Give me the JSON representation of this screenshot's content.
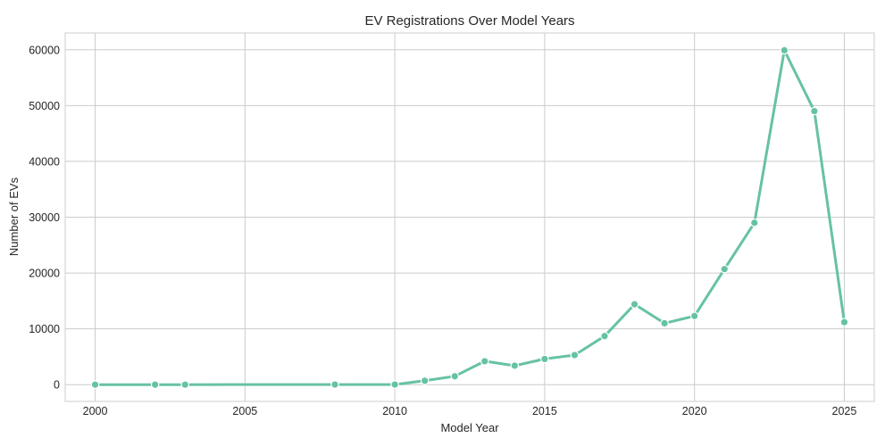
{
  "chart_data": {
    "type": "line",
    "title": "EV Registrations Over Model Years",
    "xlabel": "Model Year",
    "ylabel": "Number of EVs",
    "xlim": [
      1999,
      2026
    ],
    "ylim": [
      -3000,
      63000
    ],
    "xticks": [
      2000,
      2005,
      2010,
      2015,
      2020,
      2025
    ],
    "yticks": [
      0,
      10000,
      20000,
      30000,
      40000,
      50000,
      60000
    ],
    "grid": true,
    "series": [
      {
        "color": "#66c2a5",
        "x": [
          2000,
          2002,
          2003,
          2008,
          2010,
          2011,
          2012,
          2013,
          2014,
          2015,
          2016,
          2017,
          2018,
          2019,
          2020,
          2021,
          2022,
          2023,
          2024,
          2025
        ],
        "y": [
          5,
          2,
          5,
          20,
          20,
          700,
          1500,
          4200,
          3400,
          4600,
          5300,
          8700,
          14400,
          11000,
          12300,
          20700,
          29000,
          59900,
          49000,
          11200
        ]
      }
    ]
  }
}
